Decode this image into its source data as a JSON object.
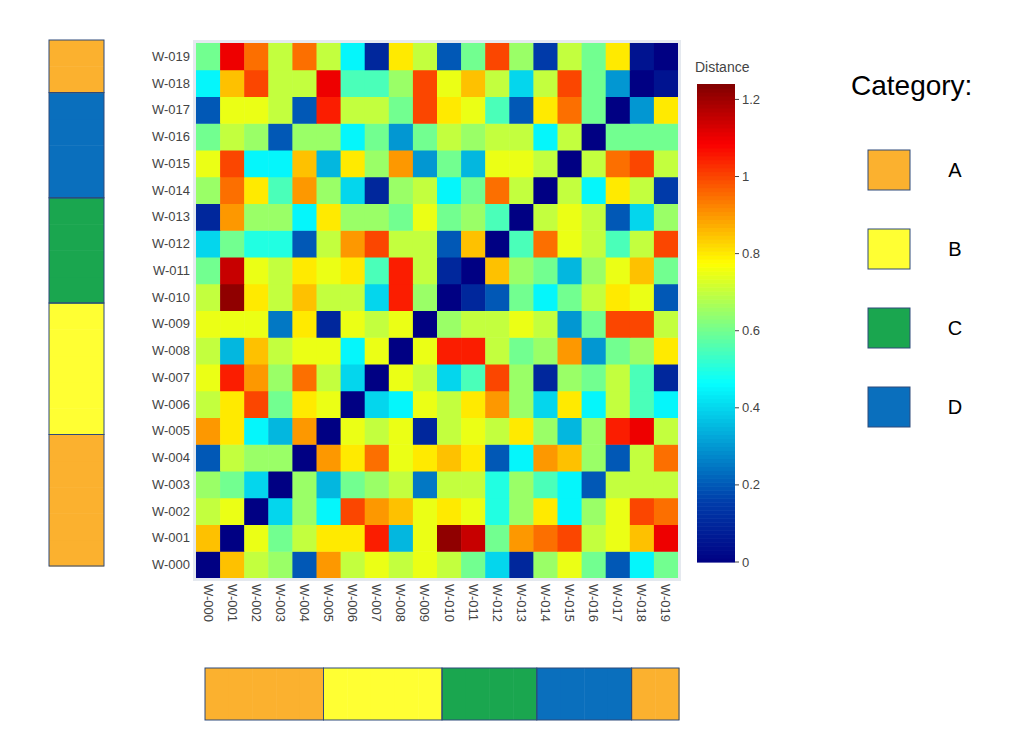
{
  "chart_data": {
    "type": "heatmap",
    "x": [
      "W-000",
      "W-001",
      "W-002",
      "W-003",
      "W-004",
      "W-005",
      "W-006",
      "W-007",
      "W-008",
      "W-009",
      "W-010",
      "W-011",
      "W-012",
      "W-013",
      "W-014",
      "W-015",
      "W-016",
      "W-017",
      "W-018",
      "W-019"
    ],
    "y": [
      "W-000",
      "W-001",
      "W-002",
      "W-003",
      "W-004",
      "W-005",
      "W-006",
      "W-007",
      "W-008",
      "W-009",
      "W-010",
      "W-011",
      "W-012",
      "W-013",
      "W-014",
      "W-015",
      "W-016",
      "W-017",
      "W-018",
      "W-019"
    ],
    "z": [
      [
        0,
        0.85,
        0.7,
        0.65,
        0.2,
        0.9,
        0.7,
        0.75,
        0.7,
        0.75,
        0.7,
        0.6,
        0.4,
        0.1,
        0.65,
        0.75,
        0.6,
        0.2,
        0.45,
        0.6
      ],
      [
        0.85,
        0,
        0.75,
        0.6,
        0.7,
        0.8,
        0.8,
        1.05,
        0.35,
        0.75,
        1.22,
        1.15,
        0.6,
        0.9,
        0.95,
        1.0,
        0.7,
        0.75,
        0.85,
        1.1
      ],
      [
        0.7,
        0.75,
        0,
        0.4,
        0.65,
        0.45,
        1.0,
        0.9,
        0.85,
        0.75,
        0.8,
        0.75,
        0.5,
        0.65,
        0.8,
        0.45,
        0.65,
        0.75,
        1.0,
        0.95
      ],
      [
        0.65,
        0.6,
        0.4,
        0,
        0.65,
        0.35,
        0.6,
        0.65,
        0.7,
        0.25,
        0.7,
        0.7,
        0.5,
        0.65,
        0.55,
        0.45,
        0.2,
        0.7,
        0.7,
        0.7
      ],
      [
        0.2,
        0.7,
        0.65,
        0.65,
        0,
        0.9,
        0.8,
        0.95,
        0.75,
        0.8,
        0.85,
        0.8,
        0.2,
        0.45,
        0.9,
        0.85,
        0.65,
        0.2,
        0.7,
        0.95
      ],
      [
        0.9,
        0.8,
        0.45,
        0.35,
        0.9,
        0,
        0.75,
        0.7,
        0.75,
        0.1,
        0.7,
        0.75,
        0.7,
        0.8,
        0.65,
        0.35,
        0.65,
        1.05,
        1.1,
        0.7
      ],
      [
        0.7,
        0.8,
        1.0,
        0.6,
        0.8,
        0.75,
        0,
        0.4,
        0.45,
        0.75,
        0.7,
        0.8,
        0.9,
        0.65,
        0.4,
        0.8,
        0.45,
        0.7,
        0.55,
        0.45
      ],
      [
        0.75,
        1.05,
        0.9,
        0.65,
        0.95,
        0.7,
        0.4,
        0,
        0.75,
        0.7,
        0.4,
        0.55,
        1.0,
        0.65,
        0.1,
        0.65,
        0.6,
        0.7,
        0.55,
        0.1
      ],
      [
        0.7,
        0.35,
        0.85,
        0.7,
        0.75,
        0.75,
        0.45,
        0.75,
        0,
        0.75,
        1.05,
        1.05,
        0.7,
        0.6,
        0.65,
        0.9,
        0.3,
        0.6,
        0.65,
        0.8
      ],
      [
        0.75,
        0.75,
        0.75,
        0.25,
        0.8,
        0.1,
        0.75,
        0.7,
        0.75,
        0,
        0.65,
        0.7,
        0.7,
        0.75,
        0.7,
        0.3,
        0.6,
        1.0,
        1.0,
        0.7
      ],
      [
        0.7,
        1.22,
        0.8,
        0.7,
        0.85,
        0.7,
        0.7,
        0.4,
        1.05,
        0.65,
        0,
        0.1,
        0.2,
        0.6,
        0.45,
        0.6,
        0.7,
        0.8,
        0.75,
        0.2
      ],
      [
        0.6,
        1.15,
        0.75,
        0.7,
        0.8,
        0.75,
        0.8,
        0.55,
        1.05,
        0.7,
        0.1,
        0,
        0.85,
        0.65,
        0.6,
        0.35,
        0.65,
        0.75,
        0.85,
        0.6
      ],
      [
        0.4,
        0.6,
        0.5,
        0.5,
        0.2,
        0.7,
        0.9,
        1.0,
        0.7,
        0.7,
        0.2,
        0.85,
        0,
        0.55,
        0.95,
        0.75,
        0.7,
        0.55,
        0.7,
        1.0
      ],
      [
        0.1,
        0.9,
        0.65,
        0.65,
        0.45,
        0.8,
        0.65,
        0.65,
        0.6,
        0.75,
        0.6,
        0.65,
        0.55,
        0,
        0.7,
        0.75,
        0.7,
        0.2,
        0.4,
        0.65
      ],
      [
        0.65,
        0.95,
        0.8,
        0.55,
        0.9,
        0.65,
        0.4,
        0.1,
        0.65,
        0.7,
        0.45,
        0.6,
        0.95,
        0.7,
        0,
        0.7,
        0.45,
        0.8,
        0.7,
        0.15
      ],
      [
        0.75,
        1.0,
        0.45,
        0.45,
        0.85,
        0.35,
        0.8,
        0.65,
        0.9,
        0.3,
        0.6,
        0.35,
        0.75,
        0.75,
        0.7,
        0,
        0.7,
        0.95,
        1.0,
        0.7
      ],
      [
        0.6,
        0.7,
        0.65,
        0.2,
        0.65,
        0.65,
        0.45,
        0.6,
        0.3,
        0.6,
        0.7,
        0.65,
        0.7,
        0.7,
        0.45,
        0.7,
        0,
        0.6,
        0.6,
        0.6
      ],
      [
        0.2,
        0.75,
        0.75,
        0.7,
        0.2,
        1.05,
        0.7,
        0.7,
        0.6,
        1.0,
        0.8,
        0.75,
        0.55,
        0.2,
        0.8,
        0.95,
        0.6,
        0,
        0.3,
        0.8
      ],
      [
        0.45,
        0.85,
        1.0,
        0.7,
        0.7,
        1.1,
        0.55,
        0.55,
        0.65,
        1.0,
        0.75,
        0.85,
        0.7,
        0.4,
        0.7,
        1.0,
        0.6,
        0.3,
        0,
        0.05
      ],
      [
        0.6,
        1.1,
        0.95,
        0.7,
        0.95,
        0.7,
        0.45,
        0.1,
        0.8,
        0.7,
        0.2,
        0.6,
        1.0,
        0.65,
        0.15,
        0.7,
        0.6,
        0.8,
        0.05,
        0
      ]
    ],
    "colorbar": {
      "title": "Distance",
      "range": [
        0,
        1.24
      ],
      "ticks": [
        0,
        0.2,
        0.4,
        0.6,
        0.8,
        1,
        1.2
      ]
    },
    "category_legend": {
      "title": "Category:",
      "names": [
        "A",
        "B",
        "C",
        "D"
      ],
      "colors": [
        "#fbb12f",
        "#ffff33",
        "#1aa64f",
        "#0a6fbd"
      ]
    },
    "item_categories": [
      "A",
      "A",
      "A",
      "A",
      "A",
      "B",
      "B",
      "B",
      "B",
      "B",
      "C",
      "C",
      "C",
      "C",
      "D",
      "D",
      "D",
      "D",
      "A",
      "A"
    ]
  }
}
